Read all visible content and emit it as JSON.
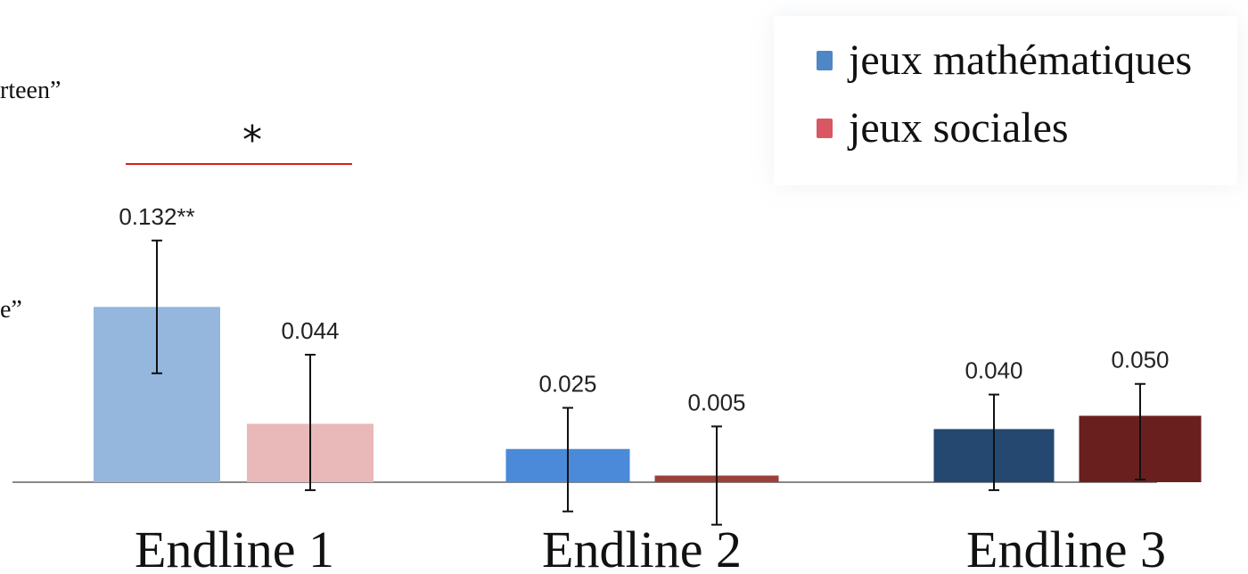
{
  "page_text": {
    "fragment_1": "rteen”",
    "fragment_2": "e”"
  },
  "legend": {
    "items": [
      {
        "label": "jeux mathématiques",
        "color": "#4f86c6"
      },
      {
        "label": "jeux sociales",
        "color": "#d95763"
      }
    ]
  },
  "chart_data": {
    "type": "bar",
    "categories": [
      "Endline 1",
      "Endline 2",
      "Endline 3"
    ],
    "series": [
      {
        "name": "jeux mathématiques",
        "values": [
          0.132,
          0.025,
          0.04
        ],
        "value_labels": [
          "0.132**",
          "0.025",
          "0.040"
        ],
        "ci_low": [
          0.082,
          -0.022,
          -0.006
        ],
        "ci_high": [
          0.182,
          0.056,
          0.066
        ],
        "colors": [
          "#95b6dd",
          "#4a8ad8",
          "#24486f"
        ]
      },
      {
        "name": "jeux sociales",
        "values": [
          0.044,
          0.005,
          0.05
        ],
        "value_labels": [
          "0.044",
          "0.005",
          "0.050"
        ],
        "ci_low": [
          -0.006,
          -0.032,
          0.002
        ],
        "ci_high": [
          0.096,
          0.042,
          0.074
        ],
        "colors": [
          "#e9b8b8",
          "#99413a",
          "#6a1f1f"
        ]
      }
    ],
    "significance": {
      "category": "Endline 1",
      "label": "*",
      "line_color": "#e0191b"
    },
    "axis_color": "#888888",
    "error_bar_color": "#111111",
    "ylim": [
      -0.04,
      0.24
    ],
    "grid": false,
    "legend_position": "top-right"
  }
}
